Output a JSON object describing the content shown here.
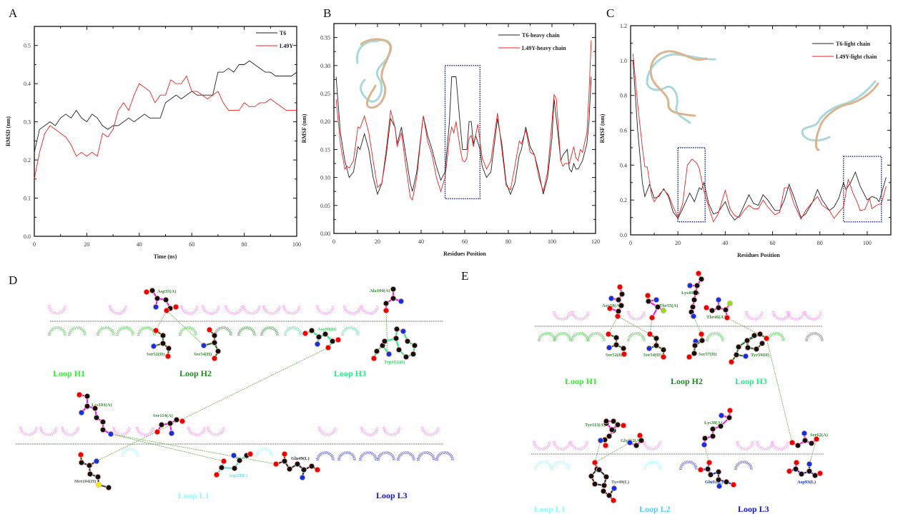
{
  "panels": {
    "a": "A",
    "b": "B",
    "c": "C",
    "d": "D",
    "e": "E"
  },
  "colors": {
    "t6": "#222222",
    "l49y": "#ee2222",
    "box": "#1a2a7a",
    "hbond": "#66aa44",
    "ligand_bond": "#ee22ee",
    "oxygen": "#ee0000",
    "nitrogen": "#1133dd",
    "carbon": "#111111",
    "sulfur": "#eeee00",
    "fluorine": "#88dd22",
    "ribbon_a": "#a9d8da",
    "ribbon_b": "#d9b48f"
  },
  "chart_data": [
    {
      "type": "line",
      "panel": "A",
      "xlabel": "Time (ns)",
      "ylabel": "RMSD (nm)",
      "xlim": [
        0,
        100
      ],
      "ylim": [
        0,
        0.55
      ],
      "xticks": [
        "0",
        "20",
        "40",
        "60",
        "80",
        "100"
      ],
      "yticks": [
        "0.0",
        "0.1",
        "0.2",
        "0.3",
        "0.4",
        "0.5"
      ],
      "legend_placement": "top-right",
      "series": [
        {
          "name": "T6",
          "color": "#222222",
          "x": [
            0,
            2,
            4,
            6,
            8,
            10,
            12,
            14,
            16,
            18,
            20,
            22,
            24,
            26,
            28,
            30,
            32,
            34,
            36,
            38,
            40,
            42,
            44,
            46,
            48,
            50,
            52,
            54,
            56,
            58,
            60,
            62,
            64,
            66,
            68,
            70,
            72,
            74,
            76,
            78,
            80,
            82,
            84,
            86,
            88,
            90,
            92,
            94,
            96,
            98,
            100
          ],
          "y": [
            0.22,
            0.28,
            0.29,
            0.3,
            0.29,
            0.31,
            0.32,
            0.31,
            0.33,
            0.31,
            0.3,
            0.32,
            0.31,
            0.29,
            0.28,
            0.29,
            0.29,
            0.3,
            0.31,
            0.3,
            0.31,
            0.32,
            0.31,
            0.31,
            0.31,
            0.35,
            0.36,
            0.37,
            0.36,
            0.37,
            0.38,
            0.37,
            0.37,
            0.37,
            0.37,
            0.43,
            0.43,
            0.44,
            0.43,
            0.45,
            0.45,
            0.46,
            0.45,
            0.44,
            0.43,
            0.43,
            0.42,
            0.42,
            0.42,
            0.42,
            0.43
          ]
        },
        {
          "name": "L49Y",
          "color": "#ee2222",
          "x": [
            0,
            2,
            4,
            6,
            8,
            10,
            12,
            14,
            16,
            18,
            20,
            22,
            24,
            26,
            28,
            30,
            32,
            34,
            36,
            38,
            40,
            42,
            44,
            46,
            48,
            50,
            52,
            54,
            56,
            58,
            60,
            62,
            64,
            66,
            68,
            70,
            72,
            74,
            76,
            78,
            80,
            82,
            84,
            86,
            88,
            90,
            92,
            94,
            96,
            98,
            100
          ],
          "y": [
            0.15,
            0.22,
            0.27,
            0.29,
            0.28,
            0.27,
            0.26,
            0.24,
            0.21,
            0.22,
            0.21,
            0.22,
            0.21,
            0.27,
            0.26,
            0.28,
            0.33,
            0.35,
            0.33,
            0.37,
            0.4,
            0.39,
            0.38,
            0.35,
            0.37,
            0.37,
            0.41,
            0.4,
            0.4,
            0.42,
            0.38,
            0.38,
            0.37,
            0.36,
            0.37,
            0.38,
            0.35,
            0.33,
            0.33,
            0.33,
            0.35,
            0.34,
            0.34,
            0.35,
            0.35,
            0.36,
            0.35,
            0.34,
            0.33,
            0.33,
            0.33
          ]
        }
      ]
    },
    {
      "type": "line",
      "panel": "B",
      "xlabel": "Residues Position",
      "ylabel": "RMSF (nm)",
      "xlim": [
        0,
        120
      ],
      "ylim": [
        0,
        0.375
      ],
      "xticks": [
        "0",
        "20",
        "40",
        "60",
        "80",
        "100",
        "120"
      ],
      "yticks": [
        "0.00",
        "0.05",
        "0.10",
        "0.15",
        "0.20",
        "0.25",
        "0.30",
        "0.35"
      ],
      "legend_placement": "top-right",
      "highlight_boxes": [
        {
          "x": [
            51,
            67
          ],
          "y": [
            0.062,
            0.3
          ]
        }
      ],
      "series": [
        {
          "name": "T6-heavy chain",
          "color": "#222222",
          "x": [
            1,
            3,
            5,
            7,
            9,
            11,
            12,
            14,
            16,
            18,
            20,
            22,
            24,
            26,
            28,
            29,
            31,
            33,
            35,
            36,
            38,
            41,
            43,
            45,
            47,
            49,
            51,
            53,
            54,
            56,
            58,
            59,
            61,
            62,
            63,
            64,
            65,
            67,
            68,
            70,
            72,
            75,
            77,
            79,
            81,
            83,
            85,
            86,
            88,
            90,
            92,
            94,
            96,
            98,
            100,
            101,
            103,
            104,
            105,
            107,
            108,
            109,
            110,
            111,
            112,
            114,
            116,
            117,
            118
          ],
          "y": [
            0.28,
            0.18,
            0.13,
            0.1,
            0.11,
            0.155,
            0.15,
            0.178,
            0.15,
            0.1,
            0.07,
            0.09,
            0.14,
            0.205,
            0.19,
            0.16,
            0.19,
            0.14,
            0.09,
            0.075,
            0.11,
            0.21,
            0.175,
            0.15,
            0.12,
            0.095,
            0.11,
            0.2,
            0.28,
            0.28,
            0.19,
            0.15,
            0.15,
            0.2,
            0.2,
            0.16,
            0.175,
            0.15,
            0.12,
            0.1,
            0.11,
            0.205,
            0.16,
            0.09,
            0.07,
            0.09,
            0.14,
            0.15,
            0.19,
            0.155,
            0.14,
            0.11,
            0.07,
            0.1,
            0.17,
            0.24,
            0.17,
            0.13,
            0.14,
            0.15,
            0.115,
            0.11,
            0.125,
            0.115,
            0.115,
            0.13,
            0.16,
            0.2,
            0.28
          ]
        },
        {
          "name": "L49Y-heavy chain",
          "color": "#ee2222",
          "x": [
            1,
            3,
            5,
            6,
            7,
            9,
            11,
            12,
            14,
            16,
            18,
            20,
            22,
            24,
            26,
            28,
            29,
            31,
            33,
            35,
            36,
            38,
            41,
            43,
            45,
            47,
            49,
            51,
            53,
            54,
            55,
            56,
            58,
            59,
            60,
            61,
            62,
            63,
            64,
            66,
            68,
            70,
            72,
            75,
            77,
            79,
            81,
            83,
            85,
            86,
            88,
            90,
            92,
            94,
            96,
            98,
            100,
            101,
            102,
            104,
            105,
            106,
            108,
            110,
            111,
            112,
            113,
            114,
            116,
            117,
            118
          ],
          "y": [
            0.24,
            0.16,
            0.115,
            0.12,
            0.117,
            0.13,
            0.19,
            0.188,
            0.21,
            0.18,
            0.13,
            0.082,
            0.09,
            0.15,
            0.22,
            0.19,
            0.155,
            0.18,
            0.12,
            0.065,
            0.06,
            0.1,
            0.21,
            0.165,
            0.14,
            0.1,
            0.075,
            0.1,
            0.17,
            0.19,
            0.18,
            0.2,
            0.15,
            0.13,
            0.128,
            0.135,
            0.17,
            0.175,
            0.155,
            0.195,
            0.135,
            0.115,
            0.13,
            0.215,
            0.15,
            0.085,
            0.078,
            0.12,
            0.165,
            0.16,
            0.185,
            0.145,
            0.14,
            0.1,
            0.075,
            0.11,
            0.2,
            0.248,
            0.24,
            0.13,
            0.12,
            0.125,
            0.125,
            0.155,
            0.135,
            0.13,
            0.15,
            0.145,
            0.18,
            0.25,
            0.345
          ]
        }
      ]
    },
    {
      "type": "line",
      "panel": "C",
      "xlabel": "Residues Position",
      "ylabel": "RMSF (nm)",
      "xlim": [
        0,
        110
      ],
      "ylim": [
        0,
        1.2
      ],
      "xticks": [
        "0",
        "20",
        "40",
        "60",
        "80",
        "100"
      ],
      "yticks": [
        "0.0",
        "0.2",
        "0.4",
        "0.6",
        "0.8",
        "1.0",
        "1.2"
      ],
      "legend_placement": "top-right",
      "highlight_boxes": [
        {
          "x": [
            20,
            31.5
          ],
          "y": [
            0.075,
            0.5
          ]
        },
        {
          "x": [
            90,
            106
          ],
          "y": [
            0.075,
            0.45
          ]
        }
      ],
      "series": [
        {
          "name": "T6-light chain",
          "color": "#222222",
          "x": [
            1,
            3,
            5,
            6,
            8,
            10,
            12,
            14,
            16,
            18,
            20,
            22,
            25,
            27,
            29,
            30,
            31,
            33,
            35,
            37,
            40,
            42,
            44,
            46,
            50,
            52,
            54,
            56,
            58,
            61,
            63,
            65,
            67,
            69,
            72,
            74,
            77,
            79,
            81,
            84,
            86,
            88,
            90,
            91,
            93,
            95,
            97,
            100,
            102,
            104,
            105,
            108
          ],
          "y": [
            1.0,
            0.6,
            0.3,
            0.22,
            0.29,
            0.21,
            0.22,
            0.265,
            0.22,
            0.13,
            0.095,
            0.15,
            0.24,
            0.19,
            0.27,
            0.26,
            0.3,
            0.18,
            0.12,
            0.13,
            0.19,
            0.12,
            0.085,
            0.11,
            0.23,
            0.18,
            0.17,
            0.23,
            0.2,
            0.14,
            0.14,
            0.2,
            0.29,
            0.22,
            0.1,
            0.12,
            0.19,
            0.26,
            0.2,
            0.14,
            0.16,
            0.21,
            0.3,
            0.26,
            0.3,
            0.36,
            0.28,
            0.2,
            0.22,
            0.21,
            0.19,
            0.33
          ]
        },
        {
          "name": "L49Y-light chain",
          "color": "#ee2222",
          "x": [
            1,
            3,
            5,
            6,
            7,
            9,
            10,
            12,
            14,
            16,
            18,
            20,
            22,
            24,
            26,
            28,
            29,
            31,
            33,
            35,
            37,
            40,
            42,
            44,
            46,
            48,
            50,
            52,
            54,
            56,
            58,
            61,
            63,
            65,
            67,
            69,
            72,
            74,
            77,
            79,
            81,
            84,
            86,
            88,
            90,
            92,
            94,
            96,
            97,
            99,
            101,
            102,
            104,
            106,
            108
          ],
          "y": [
            1.04,
            0.75,
            0.5,
            0.39,
            0.39,
            0.22,
            0.19,
            0.23,
            0.26,
            0.23,
            0.16,
            0.1,
            0.18,
            0.4,
            0.435,
            0.41,
            0.38,
            0.25,
            0.16,
            0.075,
            0.12,
            0.255,
            0.15,
            0.11,
            0.1,
            0.14,
            0.17,
            0.15,
            0.15,
            0.2,
            0.16,
            0.115,
            0.13,
            0.27,
            0.27,
            0.18,
            0.09,
            0.14,
            0.19,
            0.22,
            0.17,
            0.14,
            0.095,
            0.13,
            0.16,
            0.32,
            0.24,
            0.18,
            0.14,
            0.145,
            0.21,
            0.15,
            0.17,
            0.18,
            0.28
          ]
        }
      ]
    }
  ],
  "diagram_d": {
    "loops": [
      {
        "label": "Loop H1",
        "color": "#33ee33"
      },
      {
        "label": "Loop H2",
        "color": "#228822"
      },
      {
        "label": "Loop H3",
        "color": "#22ee88"
      },
      {
        "label": "Loop L1",
        "color": "#88ffff"
      },
      {
        "label": "Loop L3",
        "color": "#1111ee"
      }
    ],
    "residues": [
      "Asp35(A)",
      "Ser52(H)",
      "Ser54(H)",
      "Asp99(H)",
      "Ala104(A)",
      "Trp102(H)",
      "Lys103(A)",
      "Ser114(A)",
      "Met104(H)",
      "Asp29(L)",
      "Glu49(L)"
    ]
  },
  "diagram_e": {
    "loops": [
      {
        "label": "Loop H1",
        "color": "#33ee33"
      },
      {
        "label": "Loop H2",
        "color": "#228822"
      },
      {
        "label": "Loop H3",
        "color": "#22ee88"
      },
      {
        "label": "Loop L1",
        "color": "#88ffff"
      },
      {
        "label": "Loop L2",
        "color": "#55ccff"
      },
      {
        "label": "Loop L3",
        "color": "#1111ee"
      }
    ],
    "residues": [
      "Asp58(A)",
      "Thr55(A)",
      "Lys49(A)",
      "Thr46(A)",
      "Ser52(H)",
      "Ser54(H)",
      "Ser57(H)",
      "Tyr59(H)",
      "Tyr113(A)",
      "Gly112(A)",
      "Tyr49(L)",
      "Lys38(A)",
      "Glu91(L)",
      "Ser62(A)",
      "Asp93(L)"
    ]
  }
}
